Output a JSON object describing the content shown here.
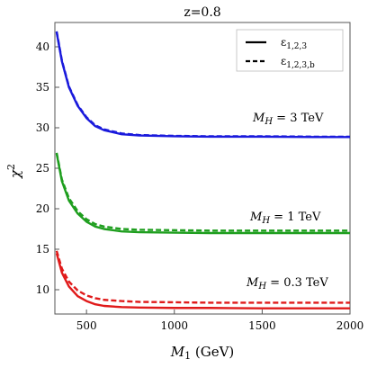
{
  "chart_data": {
    "type": "line",
    "title": "z=0.8",
    "xlabel": "M_1 (GeV)",
    "ylabel": "χ^2",
    "xlim": [
      320,
      2000
    ],
    "ylim": [
      7,
      43
    ],
    "xticks": [
      500,
      1000,
      1500,
      2000
    ],
    "yticks": [
      10,
      15,
      20,
      25,
      30,
      35,
      40
    ],
    "grid": false,
    "legend_position": "top-right",
    "legend": [
      {
        "style": "solid",
        "label": "ε_{1,2,3}"
      },
      {
        "style": "dashed",
        "label": "ε_{1,2,3,b}"
      }
    ],
    "annotations": [
      {
        "text": "M_H = 3 TeV",
        "near_series": "blue"
      },
      {
        "text": "M_H = 1 TeV",
        "near_series": "green"
      },
      {
        "text": "M_H = 0.3 TeV",
        "near_series": "red"
      }
    ],
    "series": [
      {
        "color": "#1a1adc",
        "style": "solid",
        "x": [
          330,
          360,
          400,
          450,
          500,
          550,
          600,
          700,
          800,
          1000,
          1200,
          1500,
          1800,
          2000
        ],
        "y": [
          41.8,
          38.2,
          35.0,
          32.7,
          31.2,
          30.2,
          29.7,
          29.2,
          29.05,
          28.95,
          28.9,
          28.9,
          28.85,
          28.85
        ]
      },
      {
        "color": "#1a1adc",
        "style": "dashed",
        "x": [
          330,
          360,
          400,
          450,
          500,
          550,
          600,
          700,
          800,
          1000,
          1200,
          1500,
          1800,
          2000
        ],
        "y": [
          41.9,
          38.3,
          35.1,
          32.8,
          31.3,
          30.3,
          29.8,
          29.3,
          29.1,
          29.0,
          28.95,
          28.95,
          28.9,
          28.9
        ]
      },
      {
        "color": "#1e9e1e",
        "style": "solid",
        "x": [
          330,
          360,
          400,
          450,
          500,
          550,
          600,
          700,
          800,
          1000,
          1200,
          1500,
          1800,
          2000
        ],
        "y": [
          26.8,
          23.4,
          21.0,
          19.4,
          18.4,
          17.8,
          17.5,
          17.2,
          17.1,
          17.05,
          17.0,
          17.0,
          17.0,
          17.0
        ]
      },
      {
        "color": "#1e9e1e",
        "style": "dashed",
        "x": [
          330,
          360,
          400,
          450,
          500,
          550,
          600,
          700,
          800,
          1000,
          1200,
          1500,
          1800,
          2000
        ],
        "y": [
          26.9,
          23.6,
          21.3,
          19.7,
          18.7,
          18.1,
          17.8,
          17.5,
          17.4,
          17.35,
          17.3,
          17.3,
          17.3,
          17.3
        ]
      },
      {
        "color": "#e01a1a",
        "style": "solid",
        "x": [
          330,
          360,
          400,
          450,
          500,
          550,
          600,
          700,
          800,
          1000,
          1200,
          1500,
          1800,
          2000
        ],
        "y": [
          14.5,
          12.1,
          10.4,
          9.2,
          8.6,
          8.2,
          8.0,
          7.85,
          7.8,
          7.75,
          7.75,
          7.7,
          7.7,
          7.7
        ]
      },
      {
        "color": "#e01a1a",
        "style": "dashed",
        "x": [
          330,
          360,
          400,
          450,
          500,
          550,
          600,
          700,
          800,
          1000,
          1200,
          1500,
          1800,
          2000
        ],
        "y": [
          14.8,
          12.6,
          11.0,
          9.9,
          9.3,
          8.95,
          8.75,
          8.6,
          8.5,
          8.45,
          8.4,
          8.4,
          8.4,
          8.4
        ]
      }
    ]
  }
}
